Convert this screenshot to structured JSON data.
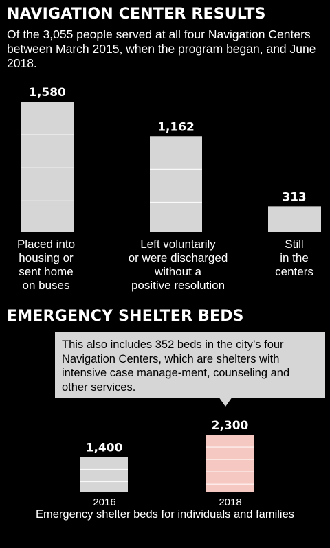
{
  "chart_data": [
    {
      "type": "bar",
      "title": "NAVIGATION CENTER RESULTS",
      "subtitle": "Of the 3,055 people served at all four Navigation Centers between March 2015, when the program began, and June 2018.",
      "categories": [
        "Placed into housing or sent home on buses",
        "Left voluntarily or were discharged without a positive resolution",
        "Still in the centers"
      ],
      "category_lines": [
        [
          "Placed into",
          "housing or",
          "sent home",
          "on buses"
        ],
        [
          "Left voluntarily",
          "or were discharged",
          "without a",
          "positive resolution"
        ],
        [
          "Still",
          "in the",
          "centers"
        ]
      ],
      "values": [
        1580,
        1162,
        313
      ],
      "value_labels": [
        "1,580",
        "1,162",
        "313"
      ],
      "ylim": [
        0,
        1580
      ],
      "grid": false
    },
    {
      "type": "bar",
      "title": "EMERGENCY SHELTER BEDS",
      "categories": [
        "2016",
        "2018"
      ],
      "values": [
        1400,
        2300
      ],
      "value_labels": [
        "1,400",
        "2,300"
      ],
      "xlabel": "Emergency shelter beds for individuals and families",
      "ylim": [
        0,
        2300
      ],
      "grid": false,
      "colors": [
        "#d6d6d6",
        "#f6c8c2"
      ],
      "annotation": "This also includes 352 beds in the city’s four Navigation Centers, which are shelters with intensive case manage-ment, counseling and other services."
    }
  ],
  "colors": {
    "background": "#000000",
    "bar": "#d6d6d6",
    "highlight_bar": "#f6c8c2",
    "text": "#ffffff",
    "callout_bg": "#d6d6d6",
    "callout_text": "#000000"
  }
}
